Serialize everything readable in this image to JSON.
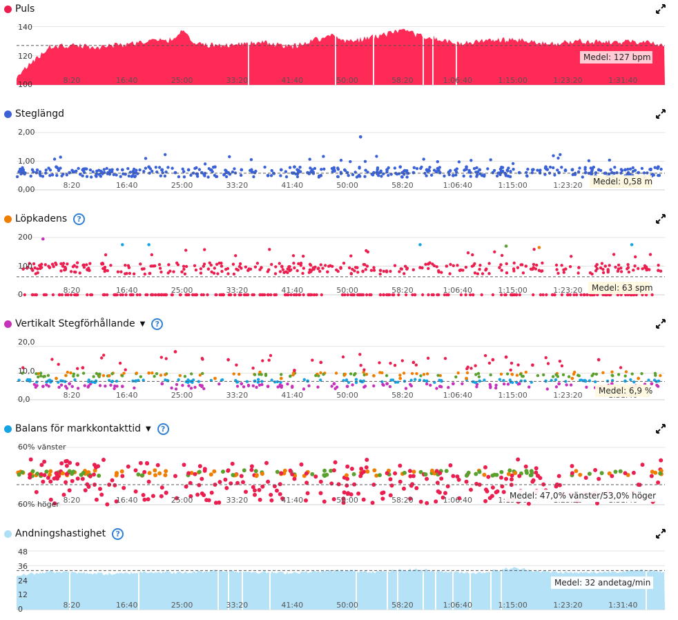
{
  "x_labels": [
    "8:20",
    "16:40",
    "25:00",
    "33:20",
    "41:40",
    "50:00",
    "58:20",
    "1:06:40",
    "1:15:00",
    "1:23:20",
    "1:31:40"
  ],
  "panels": [
    {
      "id": "puls",
      "title": "Puls",
      "dot_color": "#ea1f4f",
      "help": false,
      "caret": false,
      "avg_label": "Medel: 127 bpm",
      "y_ticks": [
        "140",
        "120",
        "100"
      ]
    },
    {
      "id": "steglangd",
      "title": "Steglängd",
      "dot_color": "#3a62d6",
      "help": false,
      "caret": false,
      "avg_label": "Medel: 0,58 m",
      "y_ticks": [
        "2,00",
        "1,00",
        "0,00"
      ]
    },
    {
      "id": "lopkadens",
      "title": "Löpkadens",
      "dot_color": "#ef7d00",
      "help": true,
      "caret": false,
      "avg_label": "Medel: 63 spm",
      "y_ticks": [
        "200",
        "100",
        "0"
      ]
    },
    {
      "id": "vertikalt",
      "title": "Vertikalt Stegförhållande",
      "dot_color": "#c531b8",
      "help": true,
      "caret": true,
      "avg_label": "Medel: 6,9 %",
      "y_ticks": [
        "20,0",
        "10,0",
        "0,0"
      ]
    },
    {
      "id": "balans",
      "title": "Balans för markkontakttid",
      "dot_color": "#16a3e3",
      "help": true,
      "caret": true,
      "avg_label": "Medel: 47,0% vänster/53,0% höger",
      "y_ticks": [
        "60% vänster",
        "60% höger"
      ]
    },
    {
      "id": "andning",
      "title": "Andningshastighet",
      "dot_color": "#ade0f5",
      "help": true,
      "caret": false,
      "avg_label": "Medel: 32 andetag/min",
      "y_ticks": [
        "48",
        "36",
        "24",
        "12",
        "0"
      ]
    }
  ],
  "chart_data": [
    {
      "type": "area",
      "title": "Puls",
      "ylim": [
        100,
        144
      ],
      "mean": 127,
      "x_ticks": [
        "8:20",
        "16:40",
        "25:00",
        "33:20",
        "41:40",
        "50:00",
        "58:20",
        "1:06:40",
        "1:15:00",
        "1:23:20",
        "1:31:40"
      ],
      "series": [
        {
          "name": "Puls",
          "color": "#ff2a55",
          "x_min": [
            0,
            3,
            5,
            8.3,
            12,
            16.7,
            20,
            24,
            25,
            27,
            30,
            33.3,
            37,
            41.7,
            45,
            48,
            50,
            52,
            55,
            58.3,
            60,
            63,
            66.7,
            70,
            75,
            80,
            85,
            90,
            95,
            98
          ],
          "values": [
            106,
            118,
            126,
            127,
            126,
            128,
            130,
            131,
            139,
            128,
            127,
            128,
            129,
            126,
            131,
            134,
            130,
            131,
            134,
            137,
            135,
            132,
            128,
            130,
            131,
            128,
            130,
            129,
            130,
            126
          ]
        }
      ]
    },
    {
      "type": "scatter",
      "title": "Steglängd",
      "ylim": [
        0,
        2
      ],
      "mean": 0.58,
      "x_ticks": [
        "8:20",
        "16:40",
        "25:00",
        "33:20",
        "41:40",
        "50:00",
        "58:20",
        "1:06:40",
        "1:15:00",
        "1:23:20",
        "1:31:40"
      ],
      "series": [
        {
          "name": "Steglängd",
          "color": "#3a62d6",
          "x_min": [
            1,
            3,
            6,
            8,
            10,
            12,
            14,
            16,
            18,
            20,
            22,
            24,
            26,
            28,
            30,
            32,
            34,
            36,
            38,
            40,
            42,
            44,
            46,
            48,
            50,
            52,
            54,
            56,
            58,
            60,
            62,
            64,
            66,
            68,
            70,
            72,
            74,
            76,
            78,
            80,
            82,
            84,
            86,
            88,
            90,
            92,
            94,
            96,
            97
          ],
          "values": [
            0.7,
            0.6,
            0.8,
            0.6,
            0.7,
            0.5,
            0.6,
            0.7,
            0.6,
            0.8,
            0.7,
            0.6,
            0.7,
            0.6,
            0.8,
            0.6,
            0.7,
            0.6,
            0.5,
            0.7,
            0.8,
            0.6,
            0.5,
            0.7,
            0.6,
            1.85,
            0.6,
            0.7,
            0.8,
            0.6,
            0.7,
            0.6,
            0.5,
            0.8,
            0.7,
            0.6,
            0.5,
            0.6,
            0.7,
            0.8,
            0.6,
            0.7,
            0.6,
            0.7,
            0.6,
            0.7,
            0.6,
            0.5,
            0.8
          ]
        }
      ]
    },
    {
      "type": "scatter",
      "title": "Löpkadens",
      "ylim": [
        0,
        200
      ],
      "mean": 63,
      "x_ticks": [
        "8:20",
        "16:40",
        "25:00",
        "33:20",
        "41:40",
        "50:00",
        "58:20",
        "1:06:40",
        "1:15:00",
        "1:23:20",
        "1:31:40"
      ],
      "series": [
        {
          "name": "Löpkadens",
          "color": "#ea1f4f",
          "x_min": [
            1,
            3,
            5,
            7,
            9,
            11,
            13,
            15,
            17,
            19,
            21,
            23,
            25,
            27,
            29,
            31,
            33,
            35,
            37,
            39,
            41,
            43,
            45,
            47,
            49,
            51,
            53,
            55,
            57,
            59,
            61,
            63,
            65,
            67,
            69,
            71,
            73,
            75,
            77,
            79,
            81,
            83,
            85,
            87,
            89,
            91,
            93,
            95,
            97
          ],
          "values": [
            90,
            0,
            95,
            100,
            0,
            85,
            110,
            0,
            95,
            90,
            0,
            105,
            80,
            0,
            90,
            100,
            0,
            85,
            95,
            0,
            90,
            110,
            0,
            80,
            95,
            0,
            100,
            85,
            0,
            90,
            95,
            0,
            100,
            85,
            0,
            90,
            95,
            0,
            100,
            85,
            0,
            90,
            95,
            0,
            100,
            90,
            0,
            95,
            85
          ]
        }
      ]
    },
    {
      "type": "scatter",
      "title": "Vertikalt Stegförhållande",
      "ylim": [
        0,
        22
      ],
      "mean": 6.9,
      "x_ticks": [
        "8:20",
        "16:40",
        "25:00",
        "33:20",
        "41:40",
        "50:00",
        "58:20",
        "1:06:40",
        "1:15:00",
        "1:23:20",
        "1:31:40"
      ],
      "series": [
        {
          "name": "Vertikalt Stegförhållande",
          "color": "#c531b8",
          "x_min": [
            2,
            4,
            6,
            8,
            10,
            12,
            14,
            16,
            18,
            20,
            22,
            24,
            26,
            28,
            30,
            32,
            34,
            36,
            38,
            40,
            42,
            44,
            46,
            48,
            50,
            52,
            54,
            56,
            58,
            60,
            62,
            64,
            66,
            68,
            70,
            72,
            74,
            76,
            78,
            80,
            82,
            84,
            86,
            88,
            90,
            92,
            94,
            96
          ],
          "values": [
            7,
            5,
            8,
            6,
            12,
            7,
            9,
            5,
            7,
            10,
            6,
            18,
            7,
            5,
            8,
            15,
            6,
            7,
            5,
            8,
            11,
            7,
            14,
            6,
            5,
            7,
            9,
            6,
            8,
            14,
            7,
            5,
            6,
            8,
            7,
            15,
            16,
            6,
            13,
            7,
            6,
            8,
            7,
            15,
            6,
            7,
            8,
            6
          ]
        }
      ]
    },
    {
      "type": "scatter",
      "title": "Balans för markkontakttid",
      "mean_left_pct": 47.0,
      "mean_right_pct": 53.0,
      "x_ticks": [
        "8:20",
        "16:40",
        "25:00",
        "33:20",
        "41:40",
        "50:00",
        "58:20",
        "1:06:40",
        "1:15:00",
        "1:23:20",
        "1:31:40"
      ],
      "series": [
        {
          "name": "Balans för markkontakttid",
          "color": "#ea1f4f",
          "x_min": [
            2,
            4,
            6,
            8,
            10,
            12,
            14,
            16,
            18,
            20,
            22,
            24,
            26,
            28,
            30,
            32,
            34,
            36,
            38,
            40,
            42,
            44,
            46,
            48,
            50,
            52,
            54,
            56,
            58,
            60,
            62,
            64,
            66,
            68,
            70,
            72,
            74,
            76,
            78,
            80,
            82,
            84,
            86,
            88,
            90,
            92,
            94,
            96
          ],
          "values": [
            50.5,
            52,
            49,
            55,
            51,
            47,
            53,
            50,
            48,
            52,
            54,
            50,
            49,
            51,
            53,
            48,
            50,
            55,
            52,
            49,
            51,
            56,
            52,
            48,
            51,
            50,
            53,
            49,
            52,
            50,
            51,
            49,
            50,
            52,
            53,
            54,
            51,
            50,
            52,
            55,
            50,
            49,
            56,
            51,
            50,
            49,
            53,
            50
          ]
        }
      ]
    },
    {
      "type": "area",
      "title": "Andningshastighet",
      "ylim": [
        0,
        48
      ],
      "mean": 32,
      "x_ticks": [
        "8:20",
        "16:40",
        "25:00",
        "33:20",
        "41:40",
        "50:00",
        "58:20",
        "1:06:40",
        "1:15:00",
        "1:23:20",
        "1:31:40"
      ],
      "series": [
        {
          "name": "Andningshastighet",
          "color": "#b6e2f7",
          "x_min": [
            0,
            5,
            10,
            15,
            20,
            25,
            30,
            35,
            40,
            45,
            50,
            55,
            60,
            65,
            70,
            75,
            80,
            85,
            90,
            95,
            98
          ],
          "values": [
            28,
            31,
            30,
            29,
            31,
            30,
            32,
            31,
            30,
            31,
            32,
            31,
            33,
            31,
            30,
            34,
            31,
            30,
            31,
            32,
            31
          ]
        }
      ]
    }
  ]
}
